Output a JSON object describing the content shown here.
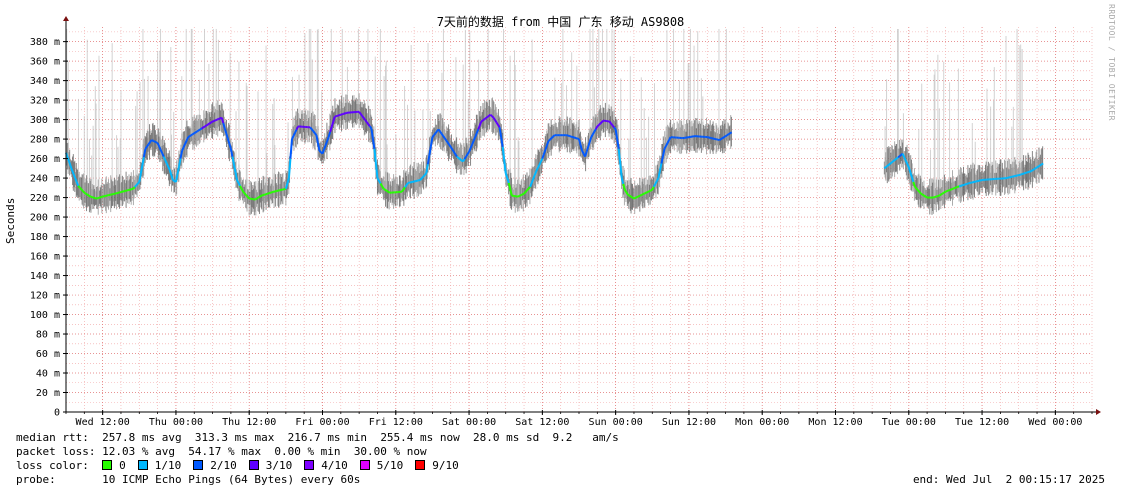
{
  "chart_data": {
    "type": "line",
    "title": "7天前的数据 from 中国 广东 移动 AS9808",
    "ylabel": "Seconds",
    "y_unit": "ms",
    "ylim": [
      0,
      395
    ],
    "yticks": [
      0,
      20,
      40,
      60,
      80,
      100,
      120,
      140,
      160,
      180,
      200,
      220,
      240,
      260,
      280,
      300,
      320,
      340,
      360,
      380
    ],
    "ytick_labels": [
      "0",
      "20 m",
      "40 m",
      "60 m",
      "80 m",
      "100 m",
      "120 m",
      "140 m",
      "160 m",
      "180 m",
      "200 m",
      "220 m",
      "240 m",
      "260 m",
      "280 m",
      "300 m",
      "320 m",
      "340 m",
      "360 m",
      "380 m"
    ],
    "x_unit": "hours since start of plot window",
    "xlim": [
      0,
      168
    ],
    "xticks": [
      6,
      18,
      30,
      42,
      54,
      66,
      78,
      90,
      102,
      114,
      126,
      138,
      150,
      162
    ],
    "xtick_labels": [
      "Wed 12:00",
      "Thu 00:00",
      "Thu 12:00",
      "Fri 00:00",
      "Fri 12:00",
      "Sat 00:00",
      "Sat 12:00",
      "Sun 00:00",
      "Sun 12:00",
      "Mon 00:00",
      "Mon 12:00",
      "Tue 00:00",
      "Tue 12:00",
      "Wed 00:00"
    ],
    "grid": true,
    "series": [
      {
        "name": "median rtt",
        "segments": [
          [
            [
              0,
              266
            ],
            [
              1,
              248
            ],
            [
              2,
              232
            ],
            [
              3,
              225
            ],
            [
              4,
              221
            ],
            [
              5,
              219
            ],
            [
              6,
              221
            ],
            [
              8,
              224
            ],
            [
              11,
              229
            ],
            [
              12,
              236
            ],
            [
              13,
              270
            ],
            [
              14,
              279
            ],
            [
              15,
              276
            ],
            [
              16,
              262
            ],
            [
              17,
              248
            ],
            [
              17.5,
              238
            ],
            [
              18,
              236
            ],
            [
              19,
              268
            ],
            [
              20,
              282
            ],
            [
              22,
              290
            ],
            [
              24,
              298
            ],
            [
              25.5,
              302
            ],
            [
              26,
              291
            ],
            [
              27,
              270
            ],
            [
              28,
              238
            ],
            [
              29,
              226
            ],
            [
              30,
              219
            ],
            [
              31,
              218
            ],
            [
              32,
              222
            ],
            [
              34,
              226
            ],
            [
              36,
              229
            ],
            [
              36.5,
              240
            ],
            [
              37,
              280
            ],
            [
              38,
              293
            ],
            [
              40,
              292
            ],
            [
              41,
              284
            ],
            [
              41.5,
              268
            ],
            [
              42,
              265
            ],
            [
              43,
              282
            ],
            [
              44,
              303
            ],
            [
              46,
              307
            ],
            [
              48,
              308
            ],
            [
              50,
              291
            ],
            [
              50.5,
              270
            ],
            [
              51,
              240
            ],
            [
              52,
              229
            ],
            [
              53,
              225
            ],
            [
              55,
              226
            ],
            [
              56,
              235
            ],
            [
              58,
              238
            ],
            [
              59,
              245
            ],
            [
              60,
              282
            ],
            [
              61,
              290
            ],
            [
              62,
              281
            ],
            [
              63,
              272
            ],
            [
              64,
              262
            ],
            [
              65,
              257
            ],
            [
              66,
              267
            ],
            [
              67,
              282
            ],
            [
              68,
              298
            ],
            [
              69.5,
              305
            ],
            [
              70,
              302
            ],
            [
              71,
              292
            ],
            [
              71.5,
              272
            ],
            [
              72,
              245
            ],
            [
              72.5,
              235
            ],
            [
              73,
              222
            ],
            [
              74,
              221
            ],
            [
              75,
              224
            ],
            [
              76,
              231
            ],
            [
              77,
              247
            ],
            [
              78,
              260
            ],
            [
              79,
              278
            ],
            [
              80,
              284
            ],
            [
              82,
              284
            ],
            [
              84,
              280
            ],
            [
              84.5,
              268
            ],
            [
              85,
              262
            ],
            [
              86,
              282
            ],
            [
              87,
              293
            ],
            [
              88,
              299
            ],
            [
              89,
              298
            ],
            [
              90,
              290
            ],
            [
              90.5,
              270
            ],
            [
              91,
              240
            ],
            [
              91.5,
              228
            ],
            [
              92,
              223
            ],
            [
              93,
              219
            ],
            [
              94,
              222
            ],
            [
              95,
              225
            ],
            [
              96,
              228
            ],
            [
              97,
              240
            ],
            [
              98,
              270
            ],
            [
              99,
              282
            ],
            [
              101,
              281
            ],
            [
              103,
              283
            ],
            [
              105,
              282
            ],
            [
              107,
              279
            ],
            [
              109,
              287
            ]
          ],
          [
            [
              134,
              250
            ],
            [
              135,
              255
            ],
            [
              136,
              260
            ],
            [
              137,
              265
            ],
            [
              138,
              251
            ],
            [
              139,
              231
            ],
            [
              140,
              224
            ],
            [
              141,
              220
            ],
            [
              142,
              220
            ],
            [
              143,
              222
            ],
            [
              144,
              226
            ],
            [
              146,
              231
            ],
            [
              148,
              235
            ],
            [
              150,
              238
            ],
            [
              152,
              239
            ],
            [
              154,
              240
            ],
            [
              156,
              243
            ],
            [
              158,
              247
            ],
            [
              159,
              251
            ],
            [
              160,
              255
            ]
          ]
        ]
      }
    ]
  },
  "legend": {
    "median_rtt": {
      "label": "median rtt:",
      "avg": "257.8 ms avg",
      "max": "313.3 ms max",
      "min": "216.7 ms min",
      "now": "255.4 ms now",
      "sd": "28.0 ms sd",
      "am": "9.2   am/s"
    },
    "packet_loss": {
      "label": "packet loss:",
      "avg": "12.03 % avg",
      "max": "54.17 % max",
      "min": "0.00 % min",
      "now": "30.00 % now"
    },
    "loss_color": {
      "label": "loss color:",
      "items": [
        {
          "label": "0",
          "color": "#26ff00"
        },
        {
          "label": "1/10",
          "color": "#00b8ff"
        },
        {
          "label": "2/10",
          "color": "#0059ff"
        },
        {
          "label": "3/10",
          "color": "#5e00ff"
        },
        {
          "label": "4/10",
          "color": "#7e00ff"
        },
        {
          "label": "5/10",
          "color": "#dd00ff"
        },
        {
          "label": "9/10",
          "color": "#ff0000"
        }
      ]
    },
    "probe": {
      "label": "probe:",
      "value": "10 ICMP Echo Pings (64 Bytes) every 60s"
    },
    "end": "end: Wed Jul  2 00:15:17 2025"
  },
  "watermark": "RRDTOOL / TOBI OETIKER"
}
